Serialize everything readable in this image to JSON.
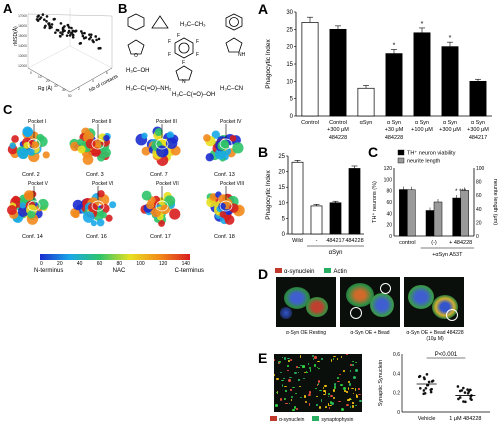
{
  "panels": {
    "a": "A",
    "b": "B",
    "c": "C",
    "A": "A",
    "B": "B",
    "C": "C",
    "D": "D",
    "E": "E"
  },
  "a3d": {
    "zlabel": "rMSD(Å)",
    "xlabel": "Rg (Å)",
    "ylabel": "Nb of contacts",
    "z_ticks": [
      "17000",
      "16000",
      "15000",
      "14000",
      "13000",
      "12000"
    ],
    "x_ticks": [
      "0",
      "10",
      "20",
      "30",
      "40",
      "50"
    ],
    "y_ticks": [
      "2",
      "4",
      "6"
    ]
  },
  "fragments": {
    "methyltoluene": "H₃C–CH₃",
    "methanol": "H₃C–OH",
    "acetamide": "H₃C–C(=O)–NH₂",
    "aceticacid": "H₃C–C(=O)–OH",
    "acetonitrile": "H₃C–CN"
  },
  "conformers": {
    "items": [
      {
        "pocket": "Pocket I",
        "conf": "Conf. 2"
      },
      {
        "pocket": "Pocket II",
        "conf": "Conf. 3"
      },
      {
        "pocket": "Pocket III",
        "conf": "Conf. 7"
      },
      {
        "pocket": "Pocket IV",
        "conf": "Conf. 13"
      },
      {
        "pocket": "Pocket V",
        "conf": "Conf. 14"
      },
      {
        "pocket": "Pocket VI",
        "conf": "Conf. 16"
      },
      {
        "pocket": "Pocket VII",
        "conf": "Conf. 17"
      },
      {
        "pocket": "Pocket VIII",
        "conf": "Conf. 18"
      }
    ],
    "scale_ticks": [
      "0",
      "20",
      "40",
      "60",
      "80",
      "100",
      "120",
      "140"
    ],
    "region_labels": [
      "N-terminus",
      "NAC",
      "C-terminus"
    ],
    "colors": [
      "#1a2ccf",
      "#19a8e8",
      "#2fc46a",
      "#e8e020",
      "#f28a1c",
      "#d81e1e"
    ]
  },
  "chart_data": [
    {
      "type": "bar",
      "panel": "A",
      "ylabel": "Phagocytic Index",
      "ylim": [
        0,
        30
      ],
      "yticks": [
        "0",
        "5",
        "10",
        "15",
        "20",
        "25",
        "30"
      ],
      "categories": [
        "Control",
        "Control +300 μM",
        "αSyn",
        "α Syn +30 μM",
        "α Syn +100 μM",
        "α Syn +300 μM",
        "α Syn +300 μM"
      ],
      "sublabels": [
        "",
        "484228",
        "",
        "484228",
        "",
        "",
        "484217"
      ],
      "values": [
        27,
        25,
        8,
        18,
        24,
        20,
        10
      ],
      "errors": [
        1.5,
        1.0,
        0.8,
        1.2,
        1.4,
        1.3,
        0.6
      ],
      "fills": [
        "#ffffff",
        "#000000",
        "#ffffff",
        "#000000",
        "#000000",
        "#000000",
        "#000000"
      ],
      "stars": [
        "",
        "",
        "",
        "*",
        "*",
        "*",
        ""
      ]
    },
    {
      "type": "bar",
      "panel": "B",
      "ylabel": "Phagocytic Index",
      "ylim": [
        0,
        25
      ],
      "yticks": [
        "0",
        "5",
        "10",
        "15",
        "20",
        "25"
      ],
      "categories": [
        "Wild",
        "-",
        "484217",
        "484228"
      ],
      "group_label": "αSyn",
      "values": [
        23,
        9,
        10,
        21
      ],
      "errors": [
        0.6,
        0.5,
        0.5,
        0.8
      ],
      "fills": [
        "#ffffff",
        "#ffffff",
        "#000000",
        "#000000"
      ]
    },
    {
      "type": "bar",
      "panel": "C",
      "ylabel": "TH⁺ neurons (%)",
      "y2label": "neurite length (μm)",
      "ylim": [
        0,
        120
      ],
      "y2lim": [
        0,
        100
      ],
      "yticks": [
        "0",
        "20",
        "40",
        "60",
        "80",
        "100",
        "120"
      ],
      "y2ticks": [
        "0",
        "20",
        "40",
        "60",
        "80",
        "100"
      ],
      "legend": [
        "TH⁺ neuron viability",
        "neurite length"
      ],
      "categories": [
        "control",
        "(-)",
        "+ 484228"
      ],
      "group_label": "+αSyn A53T",
      "series": [
        {
          "name": "TH⁺ neuron viability",
          "values": [
            82,
            45,
            67
          ],
          "fill": "#000000"
        },
        {
          "name": "neurite length",
          "values": [
            68,
            50,
            67
          ],
          "fill": "#9a9a9a"
        }
      ],
      "stars": [
        "",
        "",
        "* ***"
      ]
    },
    {
      "type": "scatter",
      "panel": "E",
      "ylabel": "Synaptic Synuclein",
      "ylim": [
        0,
        0.6
      ],
      "yticks": [
        "0",
        "0.2",
        "0.4",
        "0.6"
      ],
      "categories": [
        "Vehicle",
        "1 μM 484228"
      ],
      "means": [
        0.29,
        0.17
      ],
      "pvalue": "P<0.001"
    }
  ],
  "D": {
    "legend": [
      "α-synuclein",
      "Actin"
    ],
    "captions": [
      "α-Syn OE Resting",
      "α-Syn OE + Bead",
      "α-Syn OE + Bead 484228 (10μ M)"
    ]
  },
  "E": {
    "legend": [
      "α-synuclein",
      "synaptophysin"
    ]
  }
}
